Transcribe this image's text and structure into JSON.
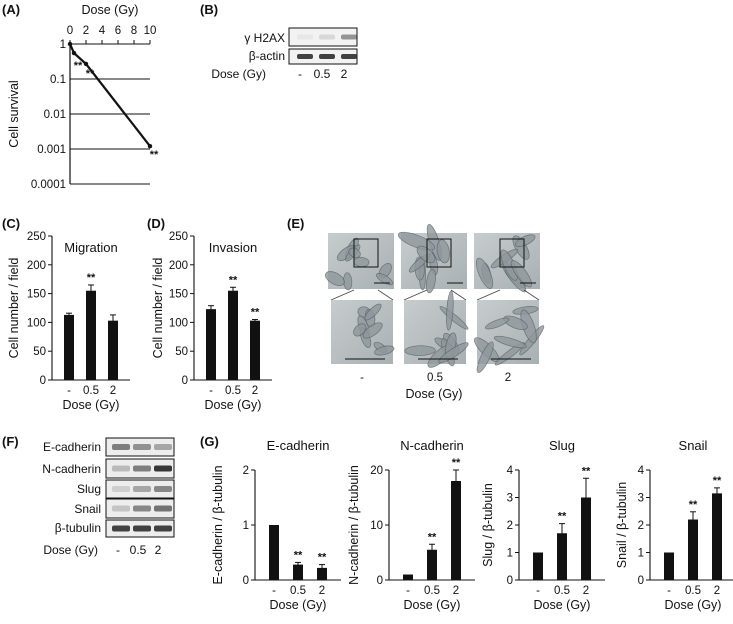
{
  "panels": {
    "A": "(A)",
    "B": "(B)",
    "C": "(C)",
    "D": "(D)",
    "E": "(E)",
    "F": "(F)",
    "G": "(G)"
  },
  "blot_b": {
    "rows": [
      "γ H2AX",
      "β-actin"
    ],
    "dose_label": "Dose (Gy)",
    "doses": [
      "-",
      "0.5",
      "2"
    ]
  },
  "blot_f": {
    "rows": [
      "E-cadherin",
      "N-cadherin",
      "Slug",
      "Snail",
      "β-tubulin"
    ],
    "dose_label": "Dose (Gy)",
    "doses": [
      "-",
      "0.5",
      "2"
    ]
  },
  "micrographs_e": {
    "doses": [
      "-",
      "0.5",
      "2"
    ],
    "dose_label": "Dose (Gy)"
  },
  "chart_data": [
    {
      "panel": "A",
      "type": "line",
      "xlabel": "Dose (Gy)",
      "ylabel": "Cell survival",
      "x_ticks": [
        "0",
        "2",
        "4",
        "6",
        "8",
        "10"
      ],
      "y_ticks": [
        "1",
        "0.1",
        "0.01",
        "0.001",
        "0.0001"
      ],
      "xlim": [
        0,
        10
      ],
      "ylim": [
        0.0001,
        1
      ],
      "y_scale": "log",
      "grid": "horizontal",
      "x": [
        0,
        0.5,
        2,
        10
      ],
      "y": [
        1,
        0.55,
        0.27,
        0.0012
      ],
      "annotations": [
        "**",
        "**",
        "**"
      ]
    },
    {
      "panel": "C",
      "type": "bar",
      "title": "Migration",
      "ylabel": "Cell number / field",
      "xlabel": "Dose (Gy)",
      "categories": [
        "-",
        "0.5",
        "2"
      ],
      "values": [
        113,
        155,
        103
      ],
      "errors": [
        3,
        10,
        10
      ],
      "sig": [
        "",
        "**",
        ""
      ],
      "ylim": [
        0,
        250
      ],
      "y_ticks": [
        "0",
        "50",
        "100",
        "150",
        "200",
        "250"
      ]
    },
    {
      "panel": "D",
      "type": "bar",
      "title": "Invasion",
      "ylabel": "Cell number / field",
      "xlabel": "Dose (Gy)",
      "categories": [
        "-",
        "0.5",
        "2"
      ],
      "values": [
        123,
        155,
        103
      ],
      "errors": [
        6,
        6,
        2
      ],
      "sig": [
        "",
        "**",
        "**"
      ],
      "ylim": [
        0,
        250
      ],
      "y_ticks": [
        "0",
        "50",
        "100",
        "150",
        "200",
        "250"
      ]
    },
    {
      "panel": "G",
      "type": "bar",
      "title": "E-cadherin",
      "ylabel": "E-cadherin / β-tubulin",
      "xlabel": "Dose (Gy)",
      "categories": [
        "-",
        "0.5",
        "2"
      ],
      "values": [
        1,
        0.28,
        0.22
      ],
      "errors": [
        0,
        0.04,
        0.06
      ],
      "sig": [
        "",
        "**",
        "**"
      ],
      "ylim": [
        0,
        2
      ],
      "y_ticks": [
        "0",
        "1",
        "2"
      ]
    },
    {
      "panel": "G",
      "type": "bar",
      "title": "N-cadherin",
      "ylabel": "N-cadherin / β-tubulin",
      "xlabel": "Dose (Gy)",
      "categories": [
        "-",
        "0.5",
        "2"
      ],
      "values": [
        1,
        5.5,
        18
      ],
      "errors": [
        0,
        1,
        2
      ],
      "sig": [
        "",
        "**",
        "**"
      ],
      "ylim": [
        0,
        20
      ],
      "y_ticks": [
        "0",
        "10",
        "20"
      ]
    },
    {
      "panel": "G",
      "type": "bar",
      "title": "Slug",
      "ylabel": "Slug / β-tubulin",
      "xlabel": "Dose (Gy)",
      "categories": [
        "-",
        "0.5",
        "2"
      ],
      "values": [
        1,
        1.7,
        3.0
      ],
      "errors": [
        0,
        0.35,
        0.7
      ],
      "sig": [
        "",
        "**",
        "**"
      ],
      "ylim": [
        0,
        4
      ],
      "y_ticks": [
        "0",
        "1",
        "2",
        "3",
        "4"
      ]
    },
    {
      "panel": "G",
      "type": "bar",
      "title": "Snail",
      "ylabel": "Snail / β-tubulin",
      "xlabel": "Dose (Gy)",
      "categories": [
        "-",
        "0.5",
        "2"
      ],
      "values": [
        1,
        2.2,
        3.15
      ],
      "errors": [
        0,
        0.28,
        0.2
      ],
      "sig": [
        "",
        "**",
        "**"
      ],
      "ylim": [
        0,
        4
      ],
      "y_ticks": [
        "0",
        "1",
        "2",
        "3",
        "4"
      ]
    }
  ]
}
